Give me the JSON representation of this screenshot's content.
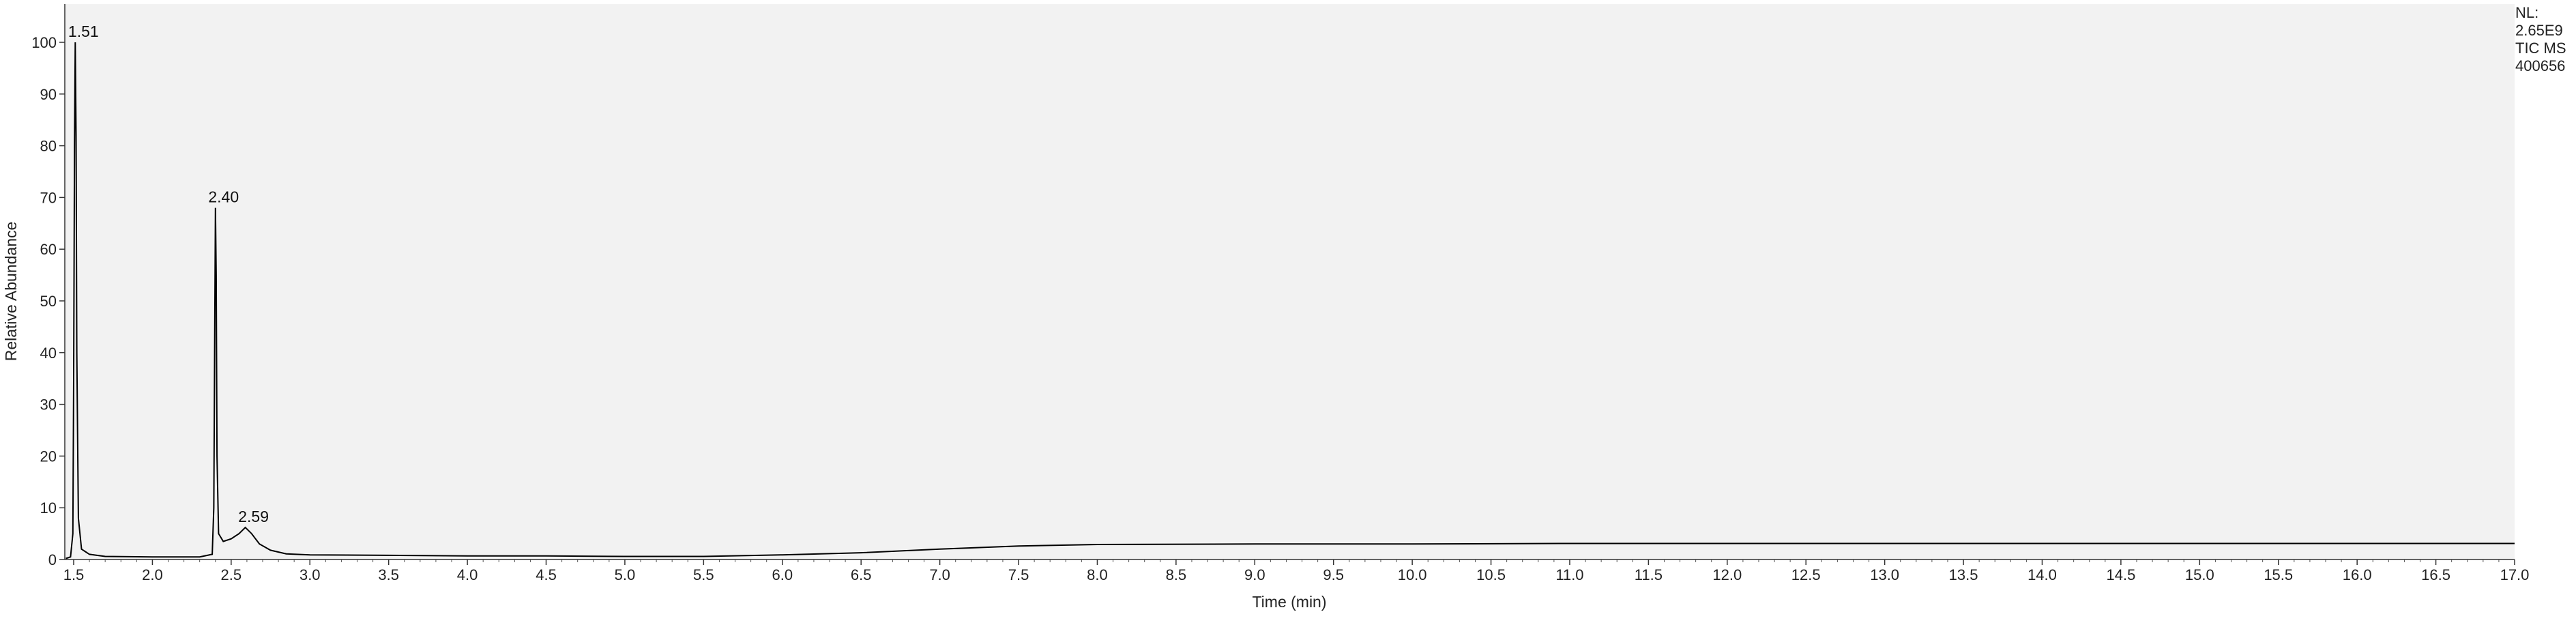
{
  "info": {
    "nl_label": "NL:",
    "nl_value": "2.65E9",
    "scan_filter": "TIC  MS",
    "sample_id": "400656"
  },
  "chart_data": {
    "type": "line",
    "title": "",
    "xlabel": "Time (min)",
    "ylabel": "Relative Abundance",
    "xlim": [
      1.5,
      17.0
    ],
    "ylim": [
      0,
      105
    ],
    "x_ticks": [
      1.5,
      2.0,
      2.5,
      3.0,
      3.5,
      4.0,
      4.5,
      5.0,
      5.5,
      6.0,
      6.5,
      7.0,
      7.5,
      8.0,
      8.5,
      9.0,
      9.5,
      10.0,
      10.5,
      11.0,
      11.5,
      12.0,
      12.5,
      13.0,
      13.5,
      14.0,
      14.5,
      15.0,
      15.5,
      16.0,
      16.5,
      17.0
    ],
    "x_tick_labels": [
      "1.5",
      "2.0",
      "2.5",
      "3.0",
      "3.5",
      "4.0",
      "4.5",
      "5.0",
      "5.5",
      "6.0",
      "6.5",
      "7.0",
      "7.5",
      "8.0",
      "8.5",
      "9.0",
      "9.5",
      "10.0",
      "10.5",
      "11.0",
      "11.5",
      "12.0",
      "12.5",
      "13.0",
      "13.5",
      "14.0",
      "14.5",
      "15.0",
      "15.5",
      "16.0",
      "16.5",
      "17.0"
    ],
    "y_ticks": [
      0,
      10,
      20,
      30,
      40,
      50,
      60,
      70,
      80,
      90,
      100
    ],
    "y_tick_labels": [
      "0",
      "10",
      "20",
      "30",
      "40",
      "50",
      "60",
      "70",
      "80",
      "90",
      "100"
    ],
    "grid": false,
    "background": "#f2f2f2",
    "line_color": "#000000",
    "series": [
      {
        "x": [
          1.45,
          1.48,
          1.495,
          1.5,
          1.505,
          1.51,
          1.515,
          1.52,
          1.53,
          1.55,
          1.6,
          1.7,
          2.0,
          2.3,
          2.38,
          2.39,
          2.395,
          2.4,
          2.405,
          2.41,
          2.42,
          2.45,
          2.5,
          2.55,
          2.59,
          2.63,
          2.68,
          2.75,
          2.85,
          3.0,
          3.5,
          4.0,
          4.5,
          5.0,
          5.5,
          6.0,
          6.5,
          7.0,
          7.5,
          8.0,
          9.0,
          10.0,
          11.0,
          12.0,
          13.0,
          14.0,
          15.0,
          16.0,
          17.0
        ],
        "y": [
          0.2,
          0.5,
          5,
          35,
          80,
          100,
          82,
          40,
          8,
          2,
          1,
          0.6,
          0.5,
          0.5,
          1,
          10,
          40,
          68,
          55,
          20,
          5,
          3.5,
          4,
          5,
          6.2,
          5,
          3,
          1.8,
          1.1,
          0.9,
          0.8,
          0.7,
          0.7,
          0.6,
          0.6,
          0.9,
          1.3,
          2.0,
          2.6,
          2.9,
          3.0,
          3.0,
          3.1,
          3.1,
          3.1,
          3.1,
          3.1,
          3.1,
          3.1
        ]
      }
    ],
    "annotations": [
      {
        "text": "1.51",
        "x": 1.51,
        "y": 100
      },
      {
        "text": "2.40",
        "x": 2.4,
        "y": 68
      },
      {
        "text": "2.59",
        "x": 2.59,
        "y": 6.2
      }
    ]
  }
}
